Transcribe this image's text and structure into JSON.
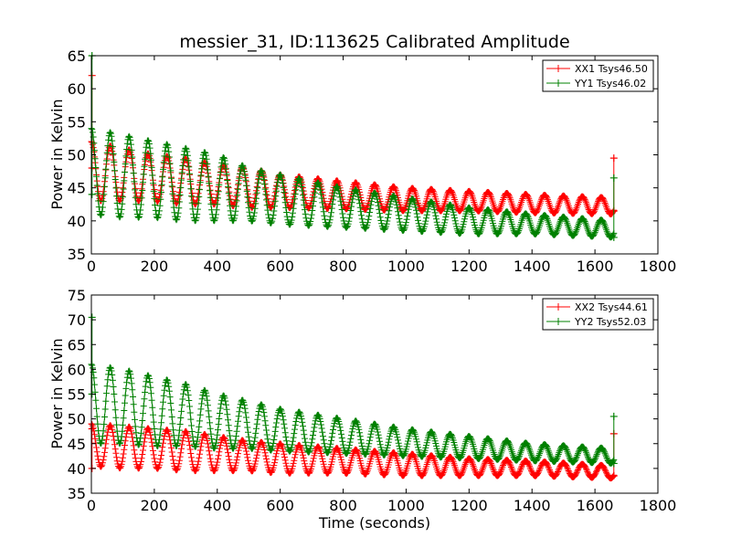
{
  "figure": {
    "title": "messier_31, ID:113625 Calibrated Amplitude",
    "xlabel": "Time (seconds)"
  },
  "chart_data": [
    {
      "type": "line",
      "ylabel": "Power in Kelvin",
      "xlim": [
        0,
        1800
      ],
      "ylim": [
        35,
        65
      ],
      "xticks": [
        "0",
        "200",
        "400",
        "600",
        "800",
        "1000",
        "1200",
        "1400",
        "1600",
        "1800"
      ],
      "yticks": [
        "35",
        "40",
        "45",
        "50",
        "55",
        "60",
        "65"
      ],
      "legend_position": "top-right",
      "oscillation_period_s": 60,
      "series": [
        {
          "name": "XX1 Tsys46.50",
          "color": "#ff0000",
          "x_range": [
            0,
            1660
          ],
          "peak_envelope": [
            [
              0,
              52
            ],
            [
              100,
              51
            ],
            [
              200,
              50
            ],
            [
              300,
              49.5
            ],
            [
              400,
              48.5
            ],
            [
              500,
              48
            ],
            [
              600,
              47
            ],
            [
              800,
              46
            ],
            [
              1000,
              45
            ],
            [
              1200,
              44.5
            ],
            [
              1400,
              44
            ],
            [
              1660,
              43.5
            ]
          ],
          "trough_envelope": [
            [
              0,
              43
            ],
            [
              100,
              43
            ],
            [
              200,
              43
            ],
            [
              300,
              42.5
            ],
            [
              400,
              42.5
            ],
            [
              500,
              42
            ],
            [
              600,
              42
            ],
            [
              800,
              41.8
            ],
            [
              1000,
              41.5
            ],
            [
              1200,
              41.5
            ],
            [
              1400,
              41.2
            ],
            [
              1660,
              41
            ]
          ],
          "start_points": [
            [
              2,
              62
            ],
            [
              2,
              48
            ]
          ],
          "end_points": [
            [
              1660,
              49.5
            ],
            [
              1660,
              41.5
            ]
          ]
        },
        {
          "name": "YY1 Tsys46.02",
          "color": "#008000",
          "x_range": [
            0,
            1660
          ],
          "peak_envelope": [
            [
              0,
              54
            ],
            [
              100,
              53
            ],
            [
              200,
              52
            ],
            [
              300,
              51
            ],
            [
              400,
              50
            ],
            [
              500,
              48
            ],
            [
              600,
              47
            ],
            [
              800,
              45
            ],
            [
              1000,
              43.5
            ],
            [
              1200,
              42
            ],
            [
              1400,
              41
            ],
            [
              1660,
              40
            ]
          ],
          "trough_envelope": [
            [
              0,
              41
            ],
            [
              100,
              40.5
            ],
            [
              200,
              40.5
            ],
            [
              300,
              40
            ],
            [
              400,
              40
            ],
            [
              500,
              40
            ],
            [
              600,
              39.5
            ],
            [
              800,
              39
            ],
            [
              1000,
              38.5
            ],
            [
              1200,
              38
            ],
            [
              1400,
              38
            ],
            [
              1660,
              37.5
            ]
          ],
          "start_points": [
            [
              2,
              65
            ],
            [
              2,
              44
            ]
          ],
          "end_points": [
            [
              1660,
              46.5
            ],
            [
              1660,
              37.5
            ]
          ]
        }
      ]
    },
    {
      "type": "line",
      "ylabel": "Power in Kelvin",
      "xlabel": "Time (seconds)",
      "xlim": [
        0,
        1800
      ],
      "ylim": [
        35,
        75
      ],
      "xticks": [
        "0",
        "200",
        "400",
        "600",
        "800",
        "1000",
        "1200",
        "1400",
        "1600",
        "1800"
      ],
      "yticks": [
        "35",
        "40",
        "45",
        "50",
        "55",
        "60",
        "65",
        "70",
        "75"
      ],
      "legend_position": "top-right",
      "oscillation_period_s": 60,
      "series": [
        {
          "name": "XX2 Tsys44.61",
          "color": "#ff0000",
          "x_range": [
            0,
            1660
          ],
          "peak_envelope": [
            [
              0,
              49
            ],
            [
              100,
              48.5
            ],
            [
              200,
              48
            ],
            [
              300,
              47.5
            ],
            [
              400,
              46.5
            ],
            [
              500,
              45.5
            ],
            [
              600,
              45
            ],
            [
              800,
              44
            ],
            [
              1000,
              43
            ],
            [
              1200,
              42
            ],
            [
              1400,
              41.5
            ],
            [
              1660,
              40.5
            ]
          ],
          "trough_envelope": [
            [
              0,
              40.5
            ],
            [
              100,
              40
            ],
            [
              200,
              40
            ],
            [
              300,
              39.5
            ],
            [
              400,
              39.5
            ],
            [
              500,
              39.5
            ],
            [
              600,
              39
            ],
            [
              800,
              39
            ],
            [
              1000,
              38.5
            ],
            [
              1200,
              38.5
            ],
            [
              1400,
              38.5
            ],
            [
              1660,
              38
            ]
          ],
          "start_points": [
            [
              2,
              48
            ],
            [
              2,
              40
            ]
          ],
          "end_points": [
            [
              1660,
              47
            ],
            [
              1660,
              38.5
            ]
          ]
        },
        {
          "name": "YY2 Tsys52.03",
          "color": "#008000",
          "x_range": [
            0,
            1660
          ],
          "peak_envelope": [
            [
              0,
              61
            ],
            [
              100,
              60
            ],
            [
              200,
              58.5
            ],
            [
              300,
              57
            ],
            [
              400,
              55
            ],
            [
              500,
              53.5
            ],
            [
              600,
              52
            ],
            [
              800,
              50
            ],
            [
              1000,
              48
            ],
            [
              1200,
              46.5
            ],
            [
              1400,
              45
            ],
            [
              1660,
              44
            ]
          ],
          "trough_envelope": [
            [
              0,
              45
            ],
            [
              100,
              45
            ],
            [
              200,
              44.5
            ],
            [
              300,
              44.5
            ],
            [
              400,
              44
            ],
            [
              500,
              44
            ],
            [
              600,
              43.5
            ],
            [
              800,
              43
            ],
            [
              1000,
              42.5
            ],
            [
              1200,
              42
            ],
            [
              1400,
              41.5
            ],
            [
              1660,
              41
            ]
          ],
          "start_points": [
            [
              2,
              70.5
            ],
            [
              2,
              55
            ]
          ],
          "end_points": [
            [
              1660,
              50.5
            ],
            [
              1660,
              41
            ]
          ]
        }
      ]
    }
  ]
}
